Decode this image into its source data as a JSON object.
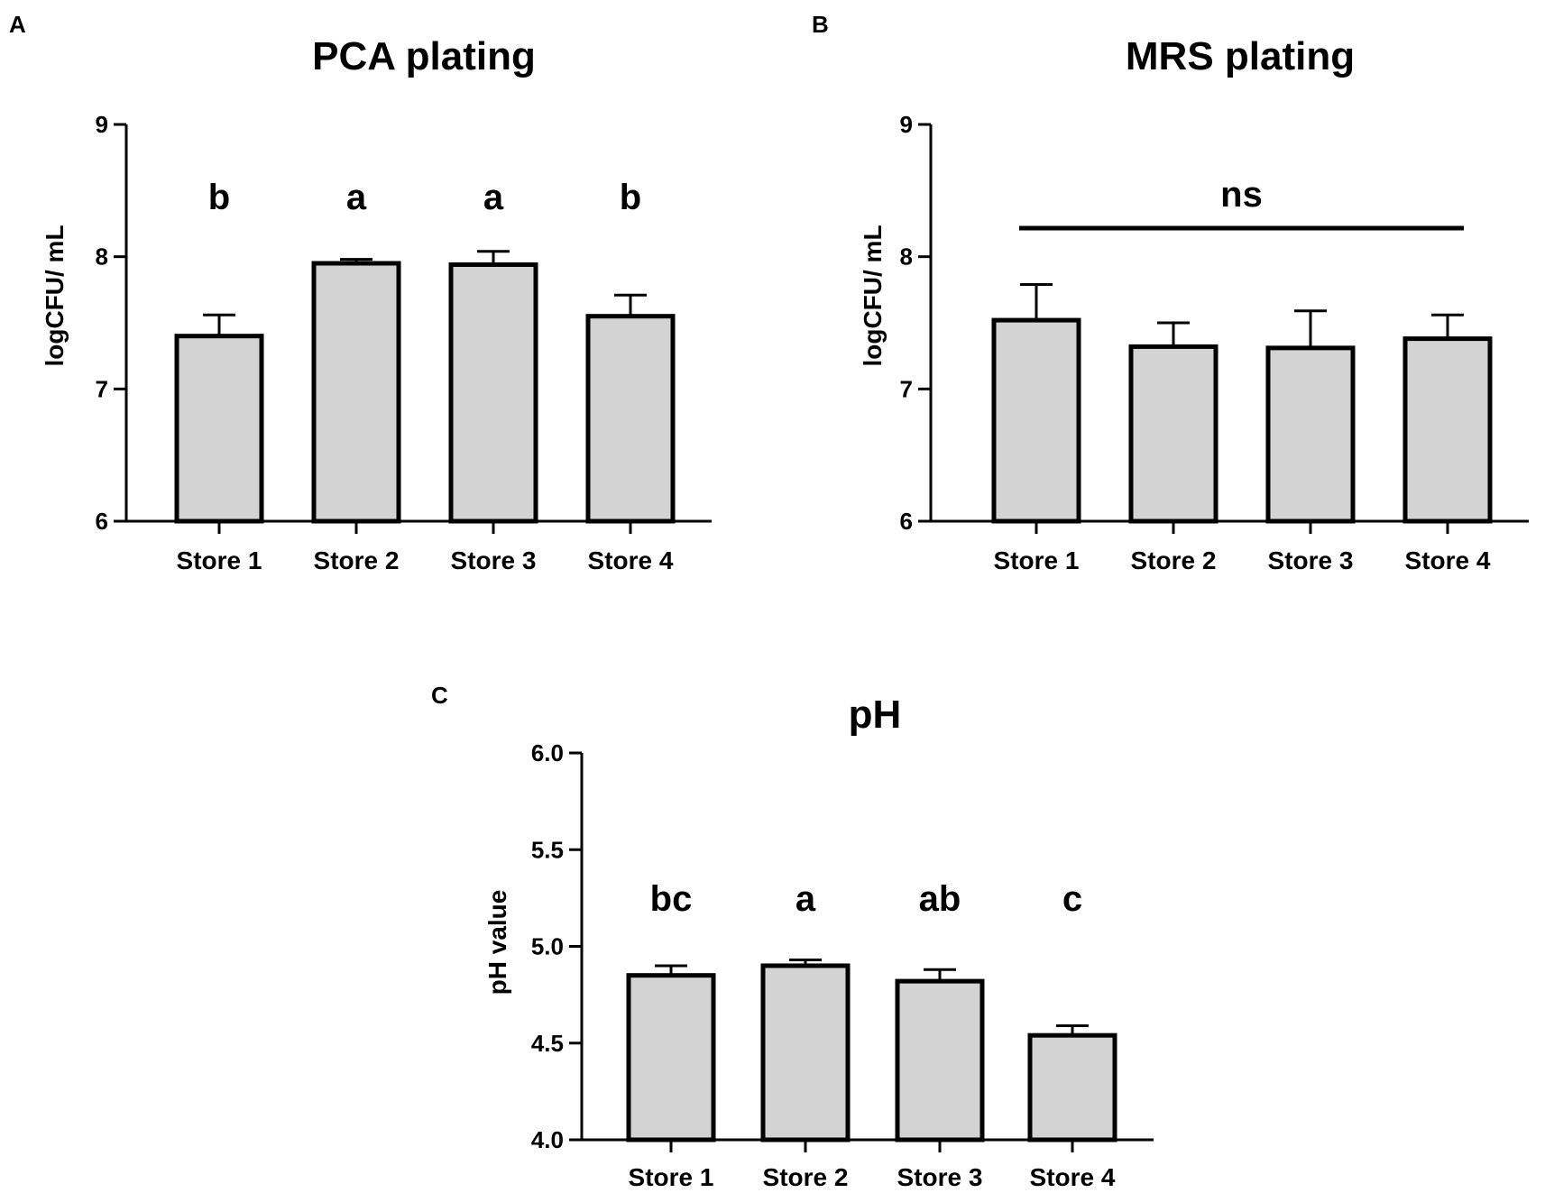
{
  "chart_data": [
    {
      "panel": "A",
      "type": "bar",
      "title": "PCA plating",
      "xlabel": "",
      "ylabel": "logCFU/ mL",
      "categories": [
        "Store 1",
        "Store 2",
        "Store 3",
        "Store 4"
      ],
      "values": [
        7.4,
        7.95,
        7.94,
        7.55
      ],
      "errors": [
        0.16,
        0.03,
        0.1,
        0.16
      ],
      "significance_labels": [
        "b",
        "a",
        "a",
        "b"
      ],
      "ylim": [
        6,
        9
      ],
      "yticks": [
        "6",
        "7",
        "8",
        "9"
      ],
      "ytick_values": [
        6,
        7,
        8,
        9
      ],
      "bar_color": "#d3d3d3",
      "edge_color": "#000000"
    },
    {
      "panel": "B",
      "type": "bar",
      "title": "MRS plating",
      "xlabel": "",
      "ylabel": "logCFU/ mL",
      "categories": [
        "Store 1",
        "Store 2",
        "Store 3",
        "Store 4"
      ],
      "values": [
        7.52,
        7.32,
        7.31,
        7.38
      ],
      "errors": [
        0.27,
        0.18,
        0.28,
        0.18
      ],
      "annotation": "ns",
      "ylim": [
        6,
        9
      ],
      "yticks": [
        "6",
        "7",
        "8",
        "9"
      ],
      "ytick_values": [
        6,
        7,
        8,
        9
      ],
      "bar_color": "#d3d3d3",
      "edge_color": "#000000"
    },
    {
      "panel": "C",
      "type": "bar",
      "title": "pH",
      "xlabel": "",
      "ylabel": "pH value",
      "categories": [
        "Store 1",
        "Store 2",
        "Store 3",
        "Store 4"
      ],
      "values": [
        4.85,
        4.9,
        4.82,
        4.54
      ],
      "errors": [
        0.05,
        0.03,
        0.06,
        0.05
      ],
      "significance_labels": [
        "bc",
        "a",
        "ab",
        "c"
      ],
      "ylim": [
        4.0,
        6.0
      ],
      "yticks": [
        "4.0",
        "4.5",
        "5.0",
        "5.5",
        "6.0"
      ],
      "ytick_values": [
        4.0,
        4.5,
        5.0,
        5.5,
        6.0
      ],
      "bar_color": "#d3d3d3",
      "edge_color": "#000000"
    }
  ]
}
